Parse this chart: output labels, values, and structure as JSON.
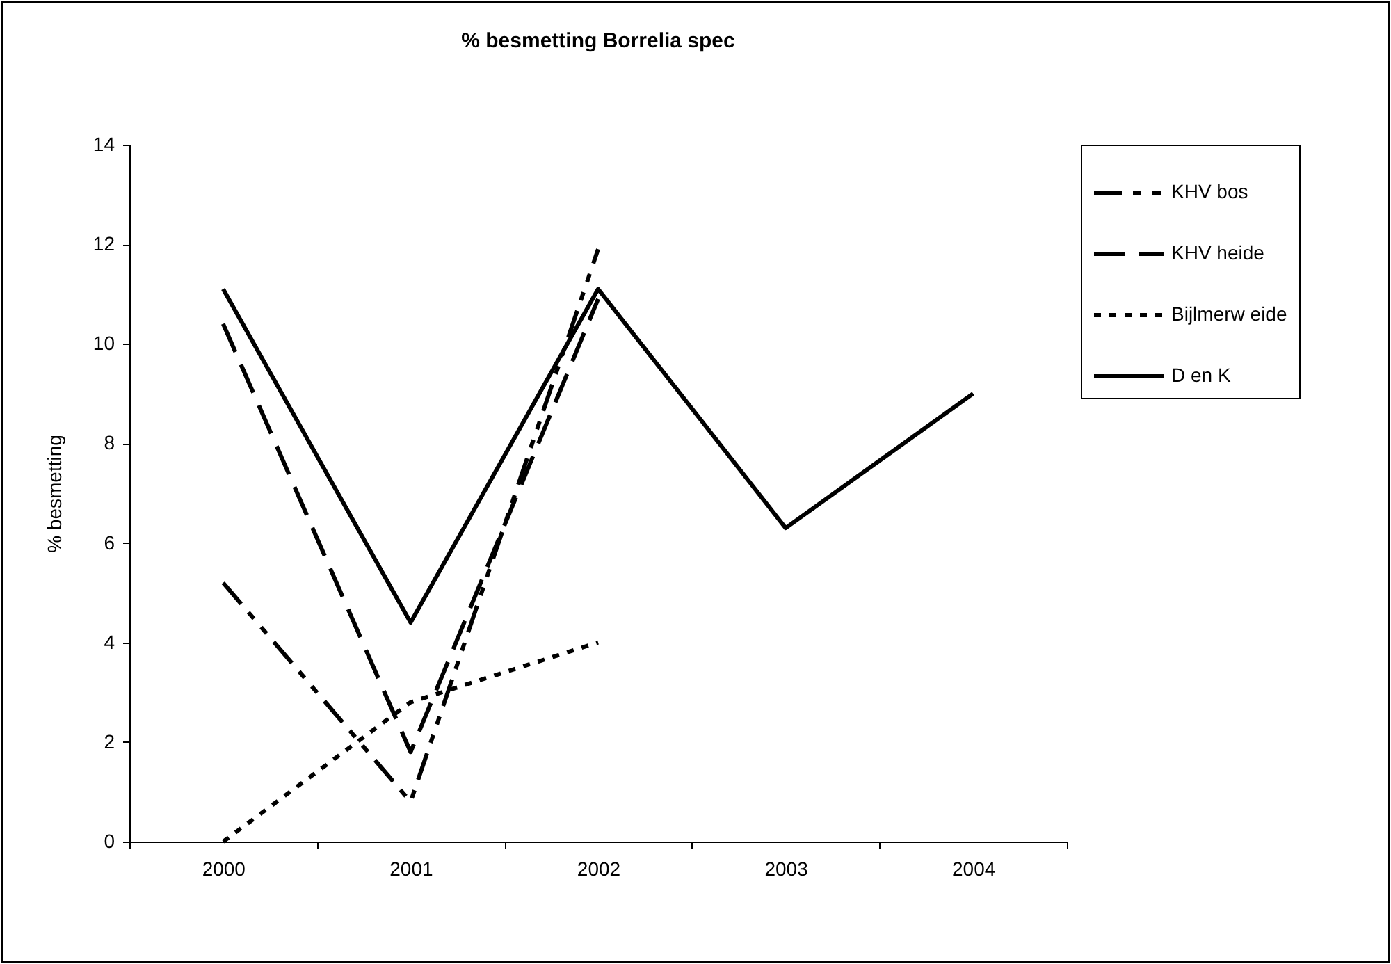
{
  "chart_data": {
    "type": "line",
    "title": "% besmetting Borrelia spec",
    "ylabel": "% besmetting",
    "categories": [
      "2000",
      "2001",
      "2002",
      "2003",
      "2004"
    ],
    "series": [
      {
        "name": "KHV bos",
        "color": "#000000",
        "line_style": "dashed",
        "values": [
          5.2,
          0.8,
          11.9,
          null,
          null
        ]
      },
      {
        "name": "KHV heide",
        "color": "#000000",
        "line_style": "dashed",
        "values": [
          10.4,
          1.8,
          10.9,
          null,
          null
        ]
      },
      {
        "name": "Bijlmerw eide",
        "color": "#000000",
        "line_style": "dotted",
        "values": [
          0,
          2.8,
          4.0,
          null,
          null
        ]
      },
      {
        "name": "D en K",
        "color": "#000000",
        "line_style": "solid",
        "values": [
          11.1,
          4.4,
          11.1,
          6.3,
          9.0
        ]
      }
    ],
    "ylim": [
      0,
      14
    ],
    "yticks": [
      0,
      2,
      4,
      6,
      8,
      10,
      12,
      14
    ],
    "grid": false,
    "legend": "right"
  }
}
